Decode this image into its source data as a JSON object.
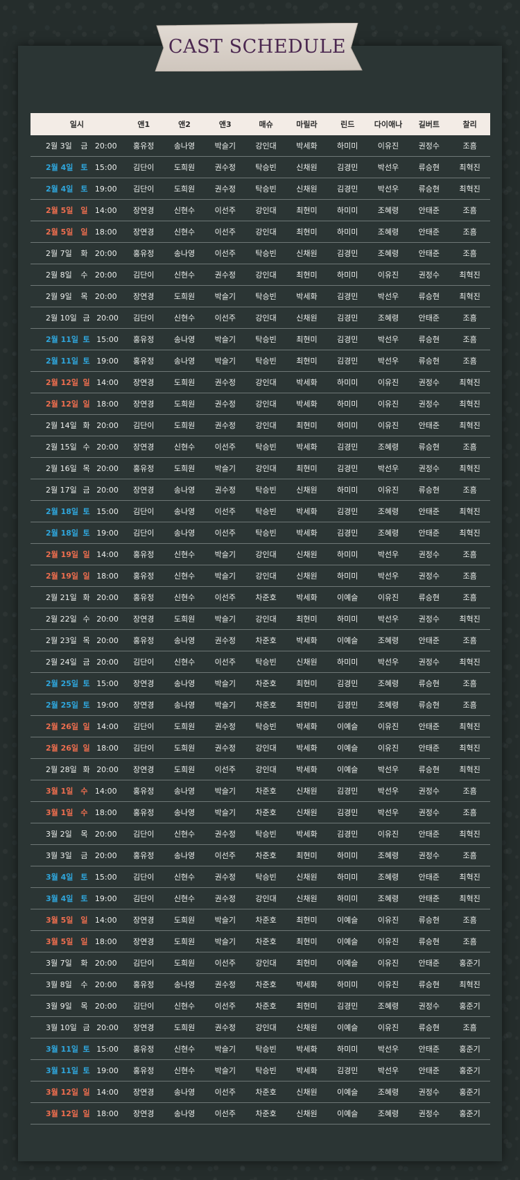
{
  "title": "CAST SCHEDULE",
  "colors": {
    "background": "#252d2c",
    "panel": "#2b3534",
    "header_bg": "#f3ece6",
    "saturday": "#2fa6dc",
    "sunday": "#ef6e4f",
    "banner": "#d8d0c8",
    "title_text": "#4b2850"
  },
  "columns": [
    "일시",
    "앤1",
    "앤2",
    "앤3",
    "매슈",
    "마릴라",
    "린드",
    "다이애나",
    "길버트",
    "찰리"
  ],
  "rows": [
    {
      "day": "2월 3일",
      "weekday": "금",
      "time": "20:00",
      "type": "weekday",
      "cast": [
        "홍유정",
        "송나영",
        "박슬기",
        "강인대",
        "박세화",
        "하미미",
        "이유진",
        "권정수",
        "조흠"
      ]
    },
    {
      "day": "2월 4일",
      "weekday": "토",
      "time": "15:00",
      "type": "sat",
      "cast": [
        "김단이",
        "도희원",
        "권수정",
        "탁승빈",
        "신채원",
        "김경민",
        "박선우",
        "류승현",
        "최혁진"
      ]
    },
    {
      "day": "2월 4일",
      "weekday": "토",
      "time": "19:00",
      "type": "sat",
      "cast": [
        "김단이",
        "도희원",
        "권수정",
        "탁승빈",
        "신채원",
        "김경민",
        "박선우",
        "류승현",
        "최혁진"
      ]
    },
    {
      "day": "2월 5일",
      "weekday": "일",
      "time": "14:00",
      "type": "sun",
      "cast": [
        "장연경",
        "신현수",
        "이선주",
        "강인대",
        "최현미",
        "하미미",
        "조혜령",
        "안태준",
        "조흠"
      ]
    },
    {
      "day": "2월 5일",
      "weekday": "일",
      "time": "18:00",
      "type": "sun",
      "cast": [
        "장연경",
        "신현수",
        "이선주",
        "강인대",
        "최현미",
        "하미미",
        "조혜령",
        "안태준",
        "조흠"
      ]
    },
    {
      "day": "2월 7일",
      "weekday": "화",
      "time": "20:00",
      "type": "weekday",
      "cast": [
        "홍유정",
        "송나영",
        "이선주",
        "탁승빈",
        "신채원",
        "김경민",
        "조혜령",
        "안태준",
        "조흠"
      ]
    },
    {
      "day": "2월 8일",
      "weekday": "수",
      "time": "20:00",
      "type": "weekday",
      "cast": [
        "김단이",
        "신현수",
        "권수정",
        "강인대",
        "최현미",
        "하미미",
        "이유진",
        "권정수",
        "최혁진"
      ]
    },
    {
      "day": "2월 9일",
      "weekday": "목",
      "time": "20:00",
      "type": "weekday",
      "cast": [
        "장연경",
        "도희원",
        "박슬기",
        "탁승빈",
        "박세화",
        "김경민",
        "박선우",
        "류승현",
        "최혁진"
      ]
    },
    {
      "day": "2월 10일",
      "weekday": "금",
      "time": "20:00",
      "type": "weekday",
      "cast": [
        "김단이",
        "신현수",
        "이선주",
        "강인대",
        "신채원",
        "김경민",
        "조혜령",
        "안태준",
        "조흠"
      ]
    },
    {
      "day": "2월 11일",
      "weekday": "토",
      "time": "15:00",
      "type": "sat",
      "cast": [
        "홍유정",
        "송나영",
        "박슬기",
        "탁승빈",
        "최현미",
        "김경민",
        "박선우",
        "류승현",
        "조흠"
      ]
    },
    {
      "day": "2월 11일",
      "weekday": "토",
      "time": "19:00",
      "type": "sat",
      "cast": [
        "홍유정",
        "송나영",
        "박슬기",
        "탁승빈",
        "최현미",
        "김경민",
        "박선우",
        "류승현",
        "조흠"
      ]
    },
    {
      "day": "2월 12일",
      "weekday": "일",
      "time": "14:00",
      "type": "sun",
      "cast": [
        "장연경",
        "도희원",
        "권수정",
        "강인대",
        "박세화",
        "하미미",
        "이유진",
        "권정수",
        "최혁진"
      ]
    },
    {
      "day": "2월 12일",
      "weekday": "일",
      "time": "18:00",
      "type": "sun",
      "cast": [
        "장연경",
        "도희원",
        "권수정",
        "강인대",
        "박세화",
        "하미미",
        "이유진",
        "권정수",
        "최혁진"
      ]
    },
    {
      "day": "2월 14일",
      "weekday": "화",
      "time": "20:00",
      "type": "weekday",
      "cast": [
        "김단이",
        "도희원",
        "권수정",
        "강인대",
        "최현미",
        "하미미",
        "이유진",
        "안태준",
        "최혁진"
      ]
    },
    {
      "day": "2월 15일",
      "weekday": "수",
      "time": "20:00",
      "type": "weekday",
      "cast": [
        "장연경",
        "신현수",
        "이선주",
        "탁승빈",
        "박세화",
        "김경민",
        "조혜령",
        "류승현",
        "조흠"
      ]
    },
    {
      "day": "2월 16일",
      "weekday": "목",
      "time": "20:00",
      "type": "weekday",
      "cast": [
        "홍유정",
        "도희원",
        "박슬기",
        "강인대",
        "최현미",
        "김경민",
        "박선우",
        "권정수",
        "최혁진"
      ]
    },
    {
      "day": "2월 17일",
      "weekday": "금",
      "time": "20:00",
      "type": "weekday",
      "cast": [
        "장연경",
        "송나영",
        "권수정",
        "탁승빈",
        "신채원",
        "하미미",
        "이유진",
        "류승현",
        "조흠"
      ]
    },
    {
      "day": "2월 18일",
      "weekday": "토",
      "time": "15:00",
      "type": "sat",
      "cast": [
        "김단이",
        "송나영",
        "이선주",
        "탁승빈",
        "박세화",
        "김경민",
        "조혜령",
        "안태준",
        "최혁진"
      ]
    },
    {
      "day": "2월 18일",
      "weekday": "토",
      "time": "19:00",
      "type": "sat",
      "cast": [
        "김단이",
        "송나영",
        "이선주",
        "탁승빈",
        "박세화",
        "김경민",
        "조혜령",
        "안태준",
        "최혁진"
      ]
    },
    {
      "day": "2월 19일",
      "weekday": "일",
      "time": "14:00",
      "type": "sun",
      "cast": [
        "홍유정",
        "신현수",
        "박슬기",
        "강인대",
        "신채원",
        "하미미",
        "박선우",
        "권정수",
        "조흠"
      ]
    },
    {
      "day": "2월 19일",
      "weekday": "일",
      "time": "18:00",
      "type": "sun",
      "cast": [
        "홍유정",
        "신현수",
        "박슬기",
        "강인대",
        "신채원",
        "하미미",
        "박선우",
        "권정수",
        "조흠"
      ]
    },
    {
      "day": "2월 21일",
      "weekday": "화",
      "time": "20:00",
      "type": "weekday",
      "cast": [
        "홍유정",
        "신현수",
        "이선주",
        "차준호",
        "박세화",
        "이예슬",
        "이유진",
        "류승현",
        "조흠"
      ]
    },
    {
      "day": "2월 22일",
      "weekday": "수",
      "time": "20:00",
      "type": "weekday",
      "cast": [
        "장연경",
        "도희원",
        "박슬기",
        "강인대",
        "최현미",
        "하미미",
        "박선우",
        "권정수",
        "최혁진"
      ]
    },
    {
      "day": "2월 23일",
      "weekday": "목",
      "time": "20:00",
      "type": "weekday",
      "cast": [
        "홍유정",
        "송나영",
        "권수정",
        "차준호",
        "박세화",
        "이예슬",
        "조혜령",
        "안태준",
        "조흠"
      ]
    },
    {
      "day": "2월 24일",
      "weekday": "금",
      "time": "20:00",
      "type": "weekday",
      "cast": [
        "김단이",
        "신현수",
        "이선주",
        "탁승빈",
        "신채원",
        "하미미",
        "박선우",
        "권정수",
        "최혁진"
      ]
    },
    {
      "day": "2월 25일",
      "weekday": "토",
      "time": "15:00",
      "type": "sat",
      "cast": [
        "장연경",
        "송나영",
        "박슬기",
        "차준호",
        "최현미",
        "김경민",
        "조혜령",
        "류승현",
        "조흠"
      ]
    },
    {
      "day": "2월 25일",
      "weekday": "토",
      "time": "19:00",
      "type": "sat",
      "cast": [
        "장연경",
        "송나영",
        "박슬기",
        "차준호",
        "최현미",
        "김경민",
        "조혜령",
        "류승현",
        "조흠"
      ]
    },
    {
      "day": "2월 26일",
      "weekday": "일",
      "time": "14:00",
      "type": "sun",
      "cast": [
        "김단이",
        "도희원",
        "권수정",
        "탁승빈",
        "박세화",
        "이예슬",
        "이유진",
        "안태준",
        "최혁진"
      ]
    },
    {
      "day": "2월 26일",
      "weekday": "일",
      "time": "18:00",
      "type": "sun",
      "cast": [
        "김단이",
        "도희원",
        "권수정",
        "강인대",
        "박세화",
        "이예슬",
        "이유진",
        "안태준",
        "최혁진"
      ]
    },
    {
      "day": "2월 28일",
      "weekday": "화",
      "time": "20:00",
      "type": "weekday",
      "cast": [
        "장연경",
        "도희원",
        "이선주",
        "강인대",
        "박세화",
        "이예슬",
        "박선우",
        "류승현",
        "최혁진"
      ]
    },
    {
      "day": "3월 1일",
      "weekday": "수",
      "time": "14:00",
      "type": "sun",
      "cast": [
        "홍유정",
        "송나영",
        "박슬기",
        "차준호",
        "신채원",
        "김경민",
        "박선우",
        "권정수",
        "조흠"
      ]
    },
    {
      "day": "3월 1일",
      "weekday": "수",
      "time": "18:00",
      "type": "sun",
      "cast": [
        "홍유정",
        "송나영",
        "박슬기",
        "차준호",
        "신채원",
        "김경민",
        "박선우",
        "권정수",
        "조흠"
      ]
    },
    {
      "day": "3월 2일",
      "weekday": "목",
      "time": "20:00",
      "type": "weekday",
      "cast": [
        "김단이",
        "신현수",
        "권수정",
        "탁승빈",
        "박세화",
        "김경민",
        "이유진",
        "안태준",
        "최혁진"
      ]
    },
    {
      "day": "3월 3일",
      "weekday": "금",
      "time": "20:00",
      "type": "weekday",
      "cast": [
        "홍유정",
        "송나영",
        "이선주",
        "차준호",
        "최현미",
        "하미미",
        "조혜령",
        "권정수",
        "조흠"
      ]
    },
    {
      "day": "3월 4일",
      "weekday": "토",
      "time": "15:00",
      "type": "sat",
      "cast": [
        "김단이",
        "신현수",
        "권수정",
        "탁승빈",
        "신채원",
        "하미미",
        "조혜령",
        "안태준",
        "최혁진"
      ]
    },
    {
      "day": "3월 4일",
      "weekday": "토",
      "time": "19:00",
      "type": "sat",
      "cast": [
        "김단이",
        "신현수",
        "권수정",
        "강인대",
        "신채원",
        "하미미",
        "조혜령",
        "안태준",
        "최혁진"
      ]
    },
    {
      "day": "3월 5일",
      "weekday": "일",
      "time": "14:00",
      "type": "sun",
      "cast": [
        "장연경",
        "도희원",
        "박슬기",
        "차준호",
        "최현미",
        "이예슬",
        "이유진",
        "류승현",
        "조흠"
      ]
    },
    {
      "day": "3월 5일",
      "weekday": "일",
      "time": "18:00",
      "type": "sun",
      "cast": [
        "장연경",
        "도희원",
        "박슬기",
        "차준호",
        "최현미",
        "이예슬",
        "이유진",
        "류승현",
        "조흠"
      ]
    },
    {
      "day": "3월 7일",
      "weekday": "화",
      "time": "20:00",
      "type": "weekday",
      "cast": [
        "김단이",
        "도희원",
        "이선주",
        "강인대",
        "최현미",
        "이예슬",
        "이유진",
        "안태준",
        "홍준기"
      ]
    },
    {
      "day": "3월 8일",
      "weekday": "수",
      "time": "20:00",
      "type": "weekday",
      "cast": [
        "홍유정",
        "송나영",
        "권수정",
        "차준호",
        "박세화",
        "하미미",
        "이유진",
        "류승현",
        "최혁진"
      ]
    },
    {
      "day": "3월 9일",
      "weekday": "목",
      "time": "20:00",
      "type": "weekday",
      "cast": [
        "김단이",
        "신현수",
        "이선주",
        "차준호",
        "최현미",
        "김경민",
        "조혜령",
        "권정수",
        "홍준기"
      ]
    },
    {
      "day": "3월 10일",
      "weekday": "금",
      "time": "20:00",
      "type": "weekday",
      "cast": [
        "장연경",
        "도희원",
        "권수정",
        "강인대",
        "신채원",
        "이예슬",
        "이유진",
        "류승현",
        "조흠"
      ]
    },
    {
      "day": "3월 11일",
      "weekday": "토",
      "time": "15:00",
      "type": "sat",
      "cast": [
        "홍유정",
        "신현수",
        "박슬기",
        "탁승빈",
        "박세화",
        "하미미",
        "박선우",
        "안태준",
        "홍준기"
      ]
    },
    {
      "day": "3월 11일",
      "weekday": "토",
      "time": "19:00",
      "type": "sat",
      "cast": [
        "홍유정",
        "신현수",
        "박슬기",
        "탁승빈",
        "박세화",
        "김경민",
        "박선우",
        "안태준",
        "홍준기"
      ]
    },
    {
      "day": "3월 12일",
      "weekday": "일",
      "time": "14:00",
      "type": "sun",
      "cast": [
        "장연경",
        "송나영",
        "이선주",
        "차준호",
        "신채원",
        "이예슬",
        "조혜령",
        "권정수",
        "홍준기"
      ]
    },
    {
      "day": "3월 12일",
      "weekday": "일",
      "time": "18:00",
      "type": "sun",
      "cast": [
        "장연경",
        "송나영",
        "이선주",
        "차준호",
        "신채원",
        "이예슬",
        "조혜령",
        "권정수",
        "홍준기"
      ]
    }
  ]
}
